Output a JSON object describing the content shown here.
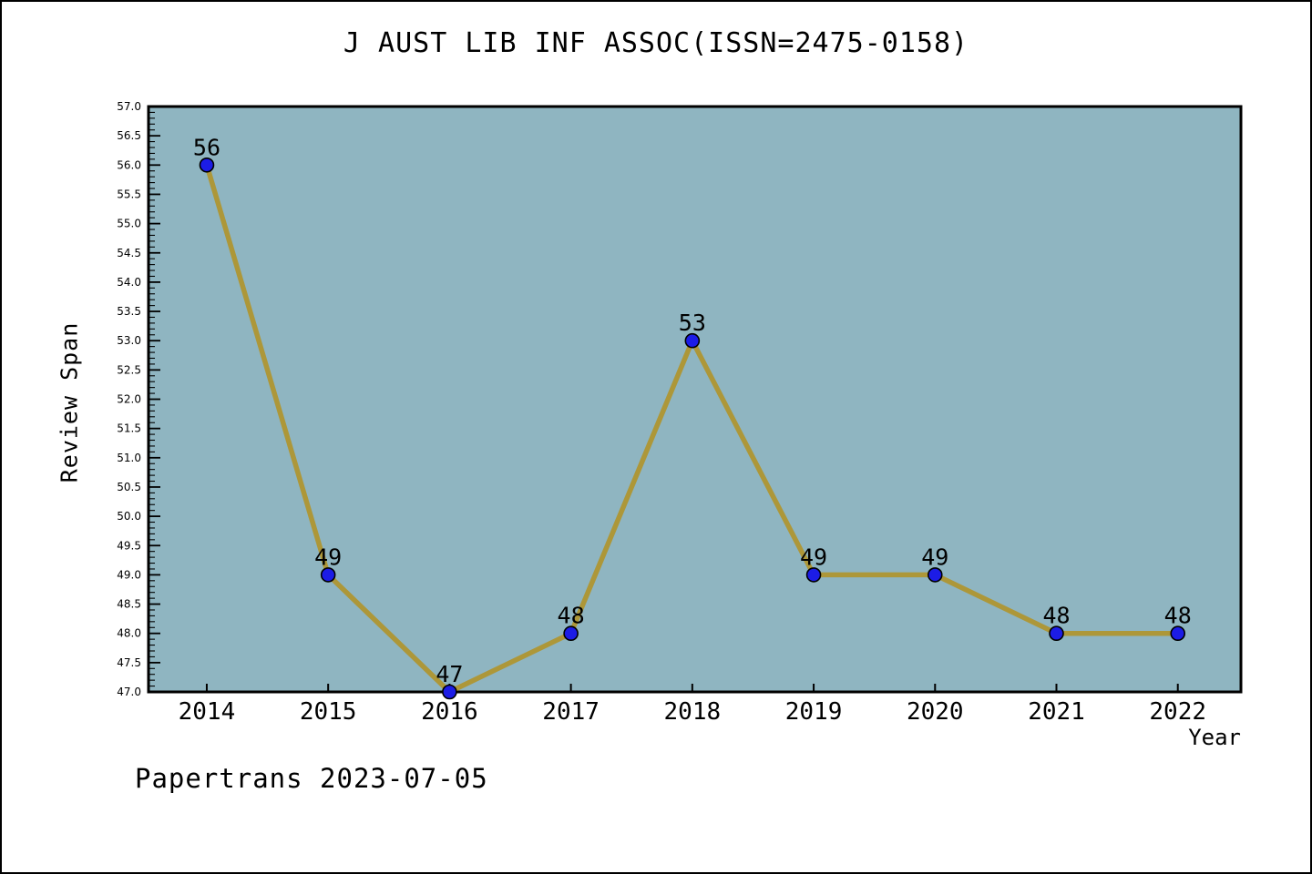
{
  "footer": {
    "text": "Papertrans 2023-07-05"
  },
  "chart_data": {
    "type": "line",
    "title": "J AUST LIB INF ASSOC(ISSN=2475-0158)",
    "xlabel": "Year",
    "ylabel": "Review Span",
    "x": [
      2014,
      2015,
      2016,
      2017,
      2018,
      2019,
      2020,
      2021,
      2022
    ],
    "series": [
      {
        "name": "Review Span",
        "values": [
          56,
          49,
          47,
          48,
          53,
          49,
          49,
          48,
          48
        ]
      }
    ],
    "point_labels": [
      "56",
      "49",
      "47",
      "48",
      "53",
      "49",
      "49",
      "48",
      "48"
    ],
    "xlim": [
      2013.52,
      2022.52
    ],
    "ylim": [
      47.0,
      57.0
    ],
    "ytick_step": 0.5,
    "yminor_step": 0.1,
    "grid": false,
    "legend": "none",
    "colors": {
      "page_background": "#ffffff",
      "page_border": "#000000",
      "plot_background": "#8fb5c1",
      "axis": "#000000",
      "line": "#ad9739",
      "marker_fill": "#1c1ce6",
      "marker_edge": "#000000",
      "text": "#000000"
    }
  }
}
